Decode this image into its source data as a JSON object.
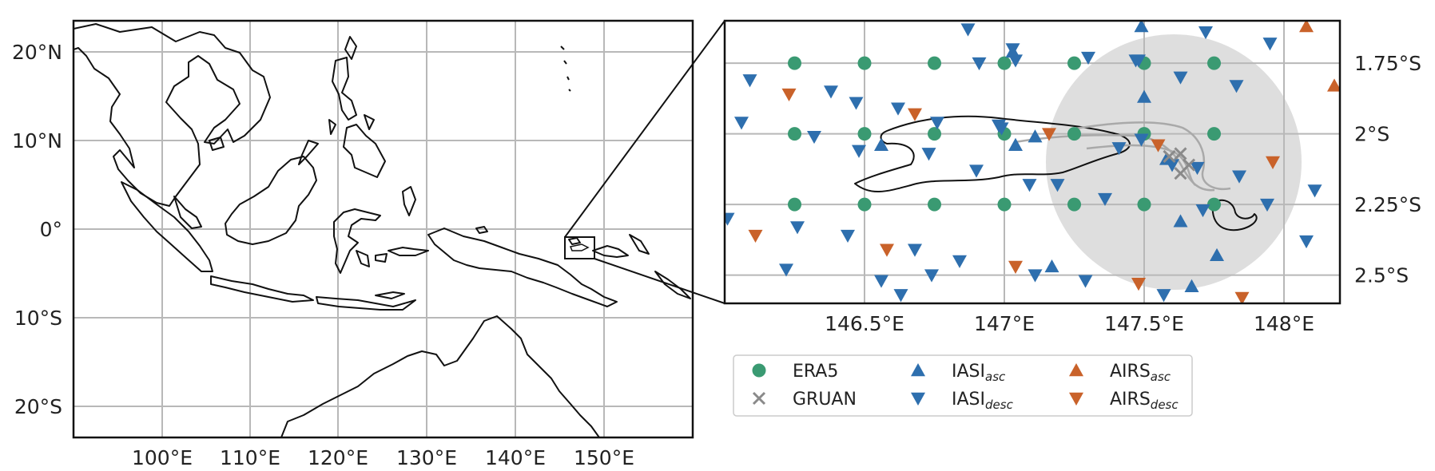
{
  "colors": {
    "era5": "#3a9a72",
    "gruan": "#8a8a8a",
    "iasi": "#2e6fae",
    "airs": "#c9622a",
    "grid": "#b8b8b8",
    "circle": "#dedede",
    "coast": "#111111",
    "track": "#a9a9a9"
  },
  "overview_map": {
    "y_ticks": [
      "20°N",
      "10°N",
      "0°",
      "10°S",
      "20°S"
    ],
    "x_ticks": [
      "100°E",
      "110°E",
      "120°E",
      "130°E",
      "140°E",
      "150°E"
    ]
  },
  "inset_map": {
    "lon_range": [
      146.0,
      148.2
    ],
    "lat_range": [
      -2.6,
      -1.6
    ],
    "x_ticks": [
      {
        "value": 146.5,
        "label": "146.5°E"
      },
      {
        "value": 147.0,
        "label": "147°E"
      },
      {
        "value": 147.5,
        "label": "147.5°E"
      },
      {
        "value": 148.0,
        "label": "148°E"
      }
    ],
    "y_ticks": [
      {
        "value": -1.75,
        "label": "1.75°S"
      },
      {
        "value": -2.0,
        "label": "2°S"
      },
      {
        "value": -2.25,
        "label": "2.25°S"
      },
      {
        "value": -2.5,
        "label": "2.5°S"
      }
    ],
    "era5_grid": {
      "lons": [
        146.25,
        146.5,
        146.75,
        147.0,
        147.25,
        147.5,
        147.75
      ],
      "lats": [
        -1.75,
        -2.0,
        -2.25
      ]
    },
    "gruan": [
      [
        147.59,
        -2.08
      ],
      [
        147.63,
        -2.07
      ],
      [
        147.66,
        -2.11
      ],
      [
        147.63,
        -2.14
      ]
    ],
    "iasi_desc": [
      [
        146.09,
        -1.81
      ],
      [
        146.06,
        -1.96
      ],
      [
        146.38,
        -1.85
      ],
      [
        146.47,
        -1.89
      ],
      [
        146.32,
        -2.01
      ],
      [
        146.48,
        -2.06
      ],
      [
        146.62,
        -1.91
      ],
      [
        146.76,
        -1.96
      ],
      [
        146.91,
        -1.75
      ],
      [
        147.04,
        -1.74
      ],
      [
        147.03,
        -1.7
      ],
      [
        146.87,
        -1.63
      ],
      [
        147.3,
        -1.73
      ],
      [
        147.48,
        -1.74
      ],
      [
        147.63,
        -1.8
      ],
      [
        147.72,
        -1.64
      ],
      [
        147.83,
        -1.83
      ],
      [
        147.95,
        -1.68
      ],
      [
        146.99,
        -1.98
      ],
      [
        147.19,
        -2.18
      ],
      [
        147.36,
        -2.23
      ],
      [
        147.6,
        -2.11
      ],
      [
        147.69,
        -2.12
      ],
      [
        147.84,
        -2.15
      ],
      [
        147.71,
        -2.27
      ],
      [
        146.26,
        -2.33
      ],
      [
        146.44,
        -2.36
      ],
      [
        146.68,
        -2.41
      ],
      [
        146.84,
        -2.45
      ],
      [
        147.11,
        -2.5
      ],
      [
        147.29,
        -2.52
      ],
      [
        146.56,
        -2.52
      ],
      [
        146.22,
        -2.48
      ],
      [
        146.63,
        -2.57
      ],
      [
        146.98,
        -1.97
      ],
      [
        146.73,
        -2.07
      ],
      [
        146.9,
        -2.13
      ],
      [
        147.47,
        -1.74
      ],
      [
        148.11,
        -2.2
      ],
      [
        148.08,
        -2.38
      ],
      [
        147.94,
        -2.25
      ],
      [
        147.49,
        -2.02
      ],
      [
        147.09,
        -2.18
      ],
      [
        147.41,
        -2.05
      ],
      [
        146.01,
        -2.3
      ],
      [
        146.74,
        -2.5
      ],
      [
        147.57,
        -2.57
      ]
    ],
    "iasi_asc": [
      [
        147.03,
        -1.71
      ],
      [
        147.49,
        -1.62
      ],
      [
        147.63,
        -2.31
      ],
      [
        147.67,
        -2.54
      ],
      [
        147.17,
        -2.47
      ],
      [
        147.04,
        -2.04
      ],
      [
        147.5,
        -1.87
      ],
      [
        147.58,
        -2.09
      ],
      [
        147.11,
        -2.01
      ],
      [
        146.56,
        -2.04
      ],
      [
        147.76,
        -2.43
      ]
    ],
    "airs_desc": [
      [
        146.23,
        -1.86
      ],
      [
        146.11,
        -2.36
      ],
      [
        146.58,
        -2.41
      ],
      [
        146.68,
        -1.93
      ],
      [
        147.04,
        -2.47
      ],
      [
        147.16,
        -2.0
      ],
      [
        147.48,
        -2.53
      ],
      [
        147.55,
        -2.04
      ],
      [
        147.96,
        -2.1
      ],
      [
        147.85,
        -2.58
      ]
    ],
    "airs_asc": [
      [
        148.08,
        -1.62
      ],
      [
        148.18,
        -1.83
      ]
    ]
  },
  "legend": [
    {
      "marker": "circle",
      "color_key": "era5",
      "label": "ERA5",
      "sub": ""
    },
    {
      "marker": "x",
      "color_key": "gruan",
      "label": "GRUAN",
      "sub": ""
    },
    {
      "marker": "tri-up",
      "color_key": "iasi",
      "label": "IASI",
      "sub": "asc"
    },
    {
      "marker": "tri-down",
      "color_key": "iasi",
      "label": "IASI",
      "sub": "desc"
    },
    {
      "marker": "tri-up",
      "color_key": "airs",
      "label": "AIRS",
      "sub": "asc"
    },
    {
      "marker": "tri-down",
      "color_key": "airs",
      "label": "AIRS",
      "sub": "desc"
    }
  ]
}
